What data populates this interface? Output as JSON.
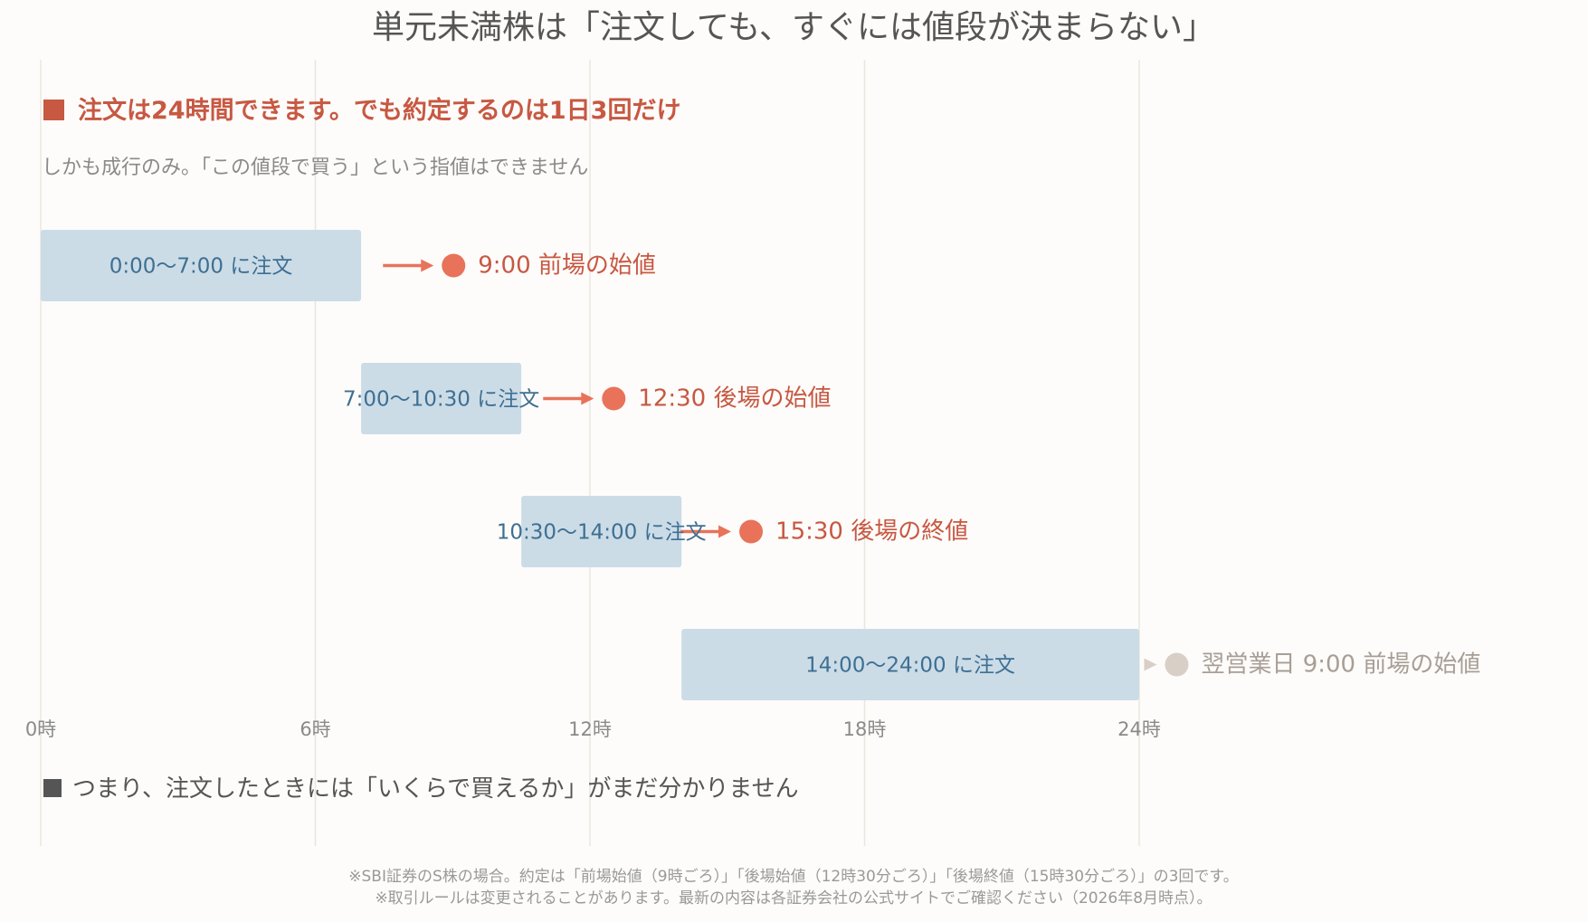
{
  "chart_data": {
    "type": "bar",
    "title": "単元未満株は「注文しても、すぐには値段が決まらない」",
    "subtitle": "注文は24時間できます。でも約定するのは1日3回だけ",
    "note": "しかも成行のみ。「この値段で買う」という指値はできません",
    "x_unit": "hour",
    "xlim": [
      0,
      24
    ],
    "ticks": [
      {
        "value": 0,
        "label": "0時"
      },
      {
        "value": 6,
        "label": "6時"
      },
      {
        "value": 12,
        "label": "12時"
      },
      {
        "value": 18,
        "label": "18時"
      },
      {
        "value": 24,
        "label": "24時"
      }
    ],
    "grid": true,
    "rows": [
      {
        "start": 0,
        "end": 7,
        "label": "0:00〜7:00 に注文",
        "result_time": 9,
        "result_label": "9:00  前場の始値",
        "next_day": false
      },
      {
        "start": 7,
        "end": 10.5,
        "label": "7:00〜10:30 に注文",
        "result_time": 12.5,
        "result_label": "12:30  後場の始値",
        "next_day": false
      },
      {
        "start": 10.5,
        "end": 14,
        "label": "10:30〜14:00 に注文",
        "result_time": 15.5,
        "result_label": "15:30  後場の終値",
        "next_day": false
      },
      {
        "start": 14,
        "end": 24,
        "label": "14:00〜24:00 に注文",
        "result_time": 24.8,
        "result_label": "翌営業日 9:00  前場の始値",
        "next_day": true
      }
    ],
    "summary": "つまり、注文したときには「いくらで買えるか」がまだ分かりません",
    "footnotes": [
      "※SBI証券のS株の場合。約定は「前場始値（9時ごろ）」「後場始値（12時30分ごろ）」「後場終値（15時30分ごろ）」の3回です。",
      "※取引ルールは変更されることがあります。最新の内容は各証券会社の公式サイトでご確認ください（2026年8月時点）。"
    ]
  },
  "colors": {
    "bar": "#cbdce7",
    "bar_text": "#3e6f92",
    "accent": "#e8735a",
    "accent_text": "#c75842",
    "muted": "#d8cfc6",
    "grid": "#e9e6df"
  }
}
